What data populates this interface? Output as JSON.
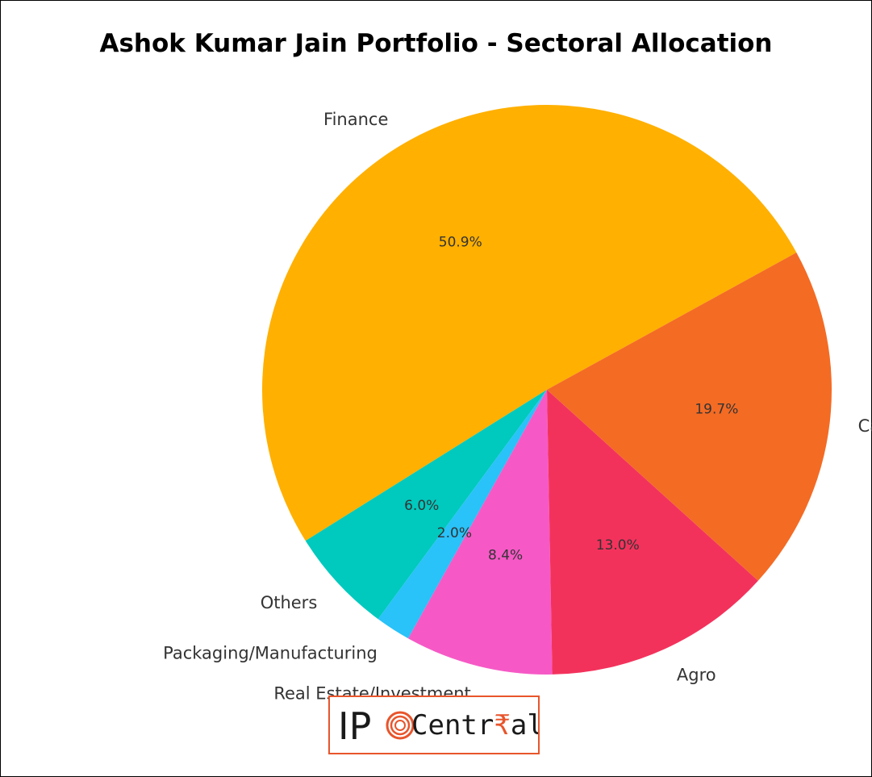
{
  "chart_data": {
    "type": "pie",
    "title": "Ashok Kumar Jain Portfolio - Sectoral Allocation",
    "start_angle_deg": 28.8,
    "direction": "counterclockwise",
    "slices": [
      {
        "label": "Finance",
        "value": 50.9,
        "pct_label": "50.9%",
        "color": "#FFB000"
      },
      {
        "label": "Others",
        "value": 6.0,
        "pct_label": "6.0%",
        "color": "#00C9BE"
      },
      {
        "label": "Packaging/Manufacturing",
        "value": 2.0,
        "pct_label": "2.0%",
        "color": "#29C2F9"
      },
      {
        "label": "Real Estate/Investment",
        "value": 8.4,
        "pct_label": "8.4%",
        "color": "#F659C6"
      },
      {
        "label": "Agro",
        "value": 13.0,
        "pct_label": "13.0%",
        "color": "#F3325C"
      },
      {
        "label": "Capital Goods",
        "value": 19.7,
        "pct_label": "19.7%",
        "color": "#F46B24"
      }
    ]
  },
  "logo": {
    "ip": "IP",
    "text": "Centr",
    "rupee": "₹",
    "tail": "al",
    "accent_color": "#E8552C"
  }
}
